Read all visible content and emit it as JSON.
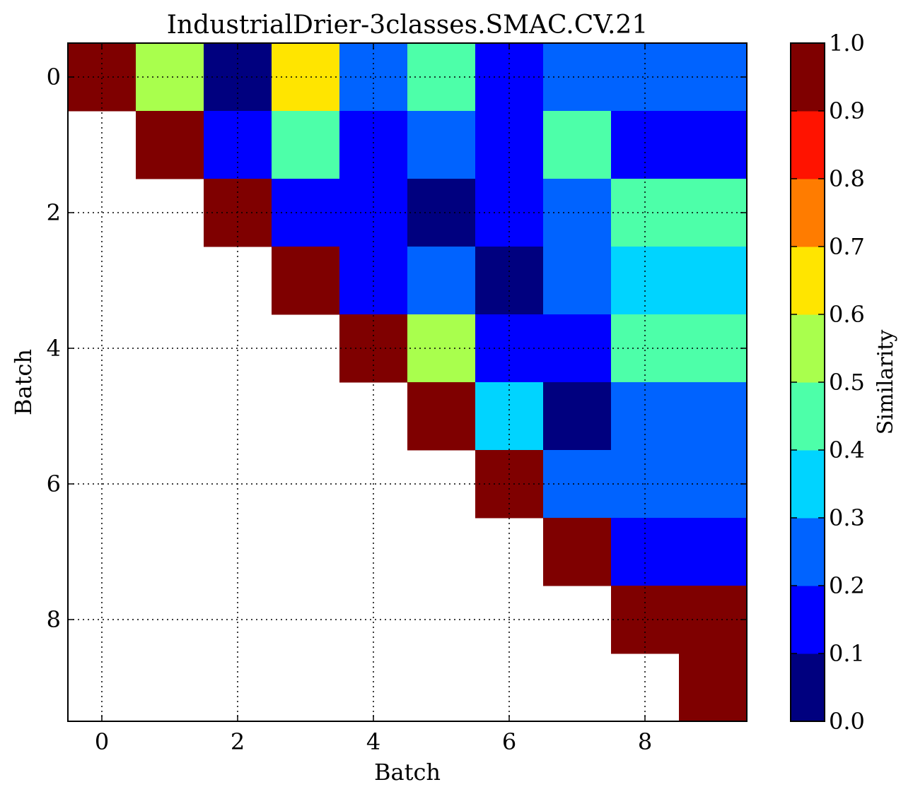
{
  "chart_data": {
    "type": "heatmap",
    "title": "IndustrialDrier-3classes.SMAC.CV.21",
    "xlabel": "Batch",
    "ylabel": "Batch",
    "x_ticks": [
      "0",
      "2",
      "4",
      "6",
      "8"
    ],
    "y_ticks": [
      "0",
      "2",
      "4",
      "6",
      "8"
    ],
    "xlim": [
      -0.5,
      9.5
    ],
    "ylim": [
      9.5,
      -0.5
    ],
    "grid": true,
    "colorbar": {
      "label": "Similarity",
      "ticks": [
        "0.0",
        "0.1",
        "0.2",
        "0.3",
        "0.4",
        "0.5",
        "0.6",
        "0.7",
        "0.8",
        "0.9",
        "1.0"
      ],
      "range": [
        0.0,
        1.0
      ],
      "colors": [
        "#00007f",
        "#0000ff",
        "#0063ff",
        "#00d4ff",
        "#4dffa9",
        "#a9ff4d",
        "#ffe500",
        "#ff7c00",
        "#ff1300",
        "#7f0000"
      ]
    },
    "matrix": [
      [
        1.0,
        0.55,
        0.05,
        0.65,
        0.25,
        0.45,
        0.15,
        0.25,
        0.25,
        0.25
      ],
      [
        null,
        1.0,
        0.15,
        0.45,
        0.15,
        0.25,
        0.15,
        0.45,
        0.15,
        0.15
      ],
      [
        null,
        null,
        1.0,
        0.15,
        0.15,
        0.05,
        0.15,
        0.25,
        0.45,
        0.45
      ],
      [
        null,
        null,
        null,
        1.0,
        0.15,
        0.25,
        0.05,
        0.25,
        0.35,
        0.35
      ],
      [
        null,
        null,
        null,
        null,
        1.0,
        0.55,
        0.15,
        0.15,
        0.45,
        0.45
      ],
      [
        null,
        null,
        null,
        null,
        null,
        1.0,
        0.35,
        0.05,
        0.25,
        0.25
      ],
      [
        null,
        null,
        null,
        null,
        null,
        null,
        1.0,
        0.25,
        0.25,
        0.25
      ],
      [
        null,
        null,
        null,
        null,
        null,
        null,
        null,
        1.0,
        0.15,
        0.15
      ],
      [
        null,
        null,
        null,
        null,
        null,
        null,
        null,
        null,
        1.0,
        1.0
      ],
      [
        null,
        null,
        null,
        null,
        null,
        null,
        null,
        null,
        null,
        1.0
      ]
    ]
  }
}
